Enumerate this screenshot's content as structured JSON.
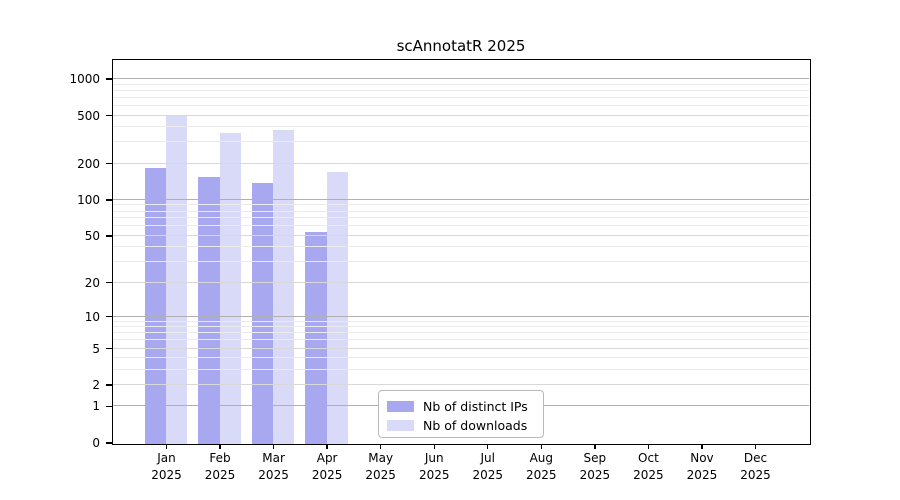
{
  "title": "scAnnotatR 2025",
  "chart_data": {
    "type": "bar",
    "title": "scAnnotatR 2025",
    "categories": [
      "Jan",
      "Feb",
      "Mar",
      "Apr",
      "May",
      "Jun",
      "Jul",
      "Aug",
      "Sep",
      "Oct",
      "Nov",
      "Dec"
    ],
    "year_label": "2025",
    "series": [
      {
        "name": "Nb of distinct IPs",
        "key": "distinct-ips",
        "color": "#a8a8f0",
        "values": [
          185,
          156,
          139,
          54,
          0,
          0,
          0,
          0,
          0,
          0,
          0,
          0
        ]
      },
      {
        "name": "Nb of downloads",
        "key": "downloads",
        "color": "#d9d9f8",
        "values": [
          507,
          365,
          385,
          172,
          0,
          0,
          0,
          0,
          0,
          0,
          0,
          0
        ]
      }
    ],
    "y_axis": {
      "scale": "log1p",
      "tick_values": [
        0,
        1,
        2,
        5,
        10,
        20,
        50,
        100,
        200,
        500,
        1000
      ],
      "tick_labels": [
        "0",
        "1",
        "2",
        "5",
        "10",
        "20",
        "50",
        "100",
        "200",
        "500",
        "1000"
      ],
      "decade_ticks": [
        1,
        10,
        100,
        1000
      ],
      "sub_ticks": [
        2,
        5,
        20,
        50,
        200,
        500
      ],
      "minor_ticks": [
        3,
        4,
        6,
        7,
        8,
        9,
        30,
        40,
        60,
        70,
        80,
        90,
        300,
        400,
        600,
        700,
        800,
        900
      ],
      "ylim": [
        0,
        1435
      ]
    },
    "grid": true,
    "legend_position": "bottom-center"
  },
  "legend": {
    "items": [
      {
        "label": "Nb of distinct IPs",
        "color": "#a8a8f0"
      },
      {
        "label": "Nb of downloads",
        "color": "#d9d9f8"
      }
    ]
  },
  "colors": {
    "bar_distinct_ips": "#a8a8f0",
    "bar_downloads": "#d9d9f8",
    "grid_decade": "#b0b0b0",
    "grid_sub": "#d8d8d8",
    "grid_minor": "#ebebeb",
    "axis": "#000000",
    "legend_border": "#b9b9b9",
    "background": "#ffffff",
    "text": "#000000"
  }
}
